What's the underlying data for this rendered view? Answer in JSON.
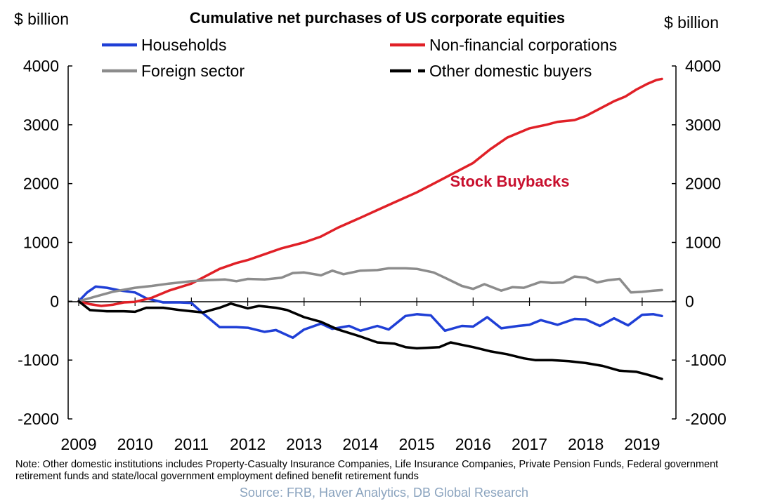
{
  "chart_data": {
    "type": "line",
    "title": "Cumulative net purchases of US corporate equities",
    "ylabel_left": "$ billion",
    "ylabel_right": "$ billion",
    "ylim": [
      -2000,
      4000
    ],
    "yticks": [
      -2000,
      -1000,
      0,
      1000,
      2000,
      3000,
      4000
    ],
    "xlim": [
      2009,
      2019.45
    ],
    "xticks": [
      "2009",
      "2010",
      "2011",
      "2012",
      "2013",
      "2014",
      "2015",
      "2016",
      "2017",
      "2018",
      "2019"
    ],
    "grid": false,
    "legend_position": "top",
    "annotation": {
      "text": "Stock Buybacks",
      "color": "#c8102e",
      "x": 2016.65,
      "y": 1950
    },
    "series": [
      {
        "name": "Households",
        "color": "#1f3fd6",
        "dash": false,
        "x": [
          2009.0,
          2009.15,
          2009.3,
          2009.5,
          2009.75,
          2010.0,
          2010.2,
          2010.5,
          2010.8,
          2011.0,
          2011.2,
          2011.5,
          2011.8,
          2012.0,
          2012.3,
          2012.5,
          2012.8,
          2013.0,
          2013.3,
          2013.5,
          2013.8,
          2014.0,
          2014.3,
          2014.5,
          2014.8,
          2015.0,
          2015.25,
          2015.5,
          2015.8,
          2016.0,
          2016.25,
          2016.5,
          2016.8,
          2017.0,
          2017.2,
          2017.5,
          2017.8,
          2018.0,
          2018.25,
          2018.5,
          2018.75,
          2019.0,
          2019.2,
          2019.35
        ],
        "values": [
          0,
          150,
          250,
          230,
          180,
          150,
          50,
          -20,
          -20,
          -30,
          -200,
          -440,
          -440,
          -450,
          -520,
          -490,
          -620,
          -480,
          -380,
          -470,
          -420,
          -500,
          -420,
          -480,
          -250,
          -220,
          -240,
          -500,
          -420,
          -430,
          -270,
          -460,
          -420,
          -400,
          -320,
          -400,
          -300,
          -310,
          -420,
          -290,
          -410,
          -230,
          -220,
          -250
        ]
      },
      {
        "name": "Non-financial corporations",
        "color": "#e02027",
        "dash": false,
        "x": [
          2009.0,
          2009.2,
          2009.4,
          2009.6,
          2009.8,
          2010.0,
          2010.3,
          2010.6,
          2011.0,
          2011.2,
          2011.5,
          2011.8,
          2012.0,
          2012.3,
          2012.6,
          2013.0,
          2013.3,
          2013.6,
          2014.0,
          2014.3,
          2014.6,
          2015.0,
          2015.3,
          2015.6,
          2016.0,
          2016.3,
          2016.6,
          2017.0,
          2017.3,
          2017.5,
          2017.8,
          2018.0,
          2018.3,
          2018.5,
          2018.7,
          2018.9,
          2019.1,
          2019.25,
          2019.35
        ],
        "values": [
          0,
          -50,
          -80,
          -60,
          -20,
          -10,
          60,
          180,
          300,
          400,
          550,
          650,
          700,
          800,
          900,
          1000,
          1100,
          1250,
          1420,
          1550,
          1680,
          1850,
          2000,
          2150,
          2350,
          2580,
          2780,
          2940,
          3000,
          3050,
          3080,
          3150,
          3300,
          3400,
          3480,
          3600,
          3700,
          3760,
          3780
        ]
      },
      {
        "name": "Foreign sector",
        "color": "#8c8c8c",
        "dash": false,
        "x": [
          2009.0,
          2009.3,
          2009.6,
          2010.0,
          2010.3,
          2010.6,
          2011.0,
          2011.3,
          2011.6,
          2011.8,
          2012.0,
          2012.3,
          2012.6,
          2012.8,
          2013.0,
          2013.3,
          2013.5,
          2013.7,
          2014.0,
          2014.3,
          2014.5,
          2014.8,
          2015.0,
          2015.3,
          2015.5,
          2015.8,
          2016.0,
          2016.2,
          2016.5,
          2016.7,
          2016.9,
          2017.2,
          2017.4,
          2017.6,
          2017.8,
          2018.0,
          2018.2,
          2018.4,
          2018.6,
          2018.8,
          2019.0,
          2019.2,
          2019.35
        ],
        "values": [
          0,
          80,
          160,
          230,
          260,
          300,
          340,
          360,
          370,
          340,
          380,
          370,
          400,
          480,
          490,
          440,
          520,
          460,
          520,
          530,
          560,
          560,
          550,
          490,
          400,
          260,
          210,
          290,
          180,
          240,
          230,
          330,
          310,
          320,
          420,
          400,
          320,
          360,
          380,
          150,
          160,
          180,
          190
        ]
      },
      {
        "name": "Other domestic buyers",
        "color": "#000000",
        "dash": true,
        "x": [
          2009.0,
          2009.2,
          2009.5,
          2009.8,
          2010.0,
          2010.2,
          2010.5,
          2010.8,
          2011.0,
          2011.2,
          2011.5,
          2011.7,
          2012.0,
          2012.2,
          2012.5,
          2012.7,
          2013.0,
          2013.3,
          2013.6,
          2014.0,
          2014.3,
          2014.6,
          2014.8,
          2015.0,
          2015.2,
          2015.4,
          2015.6,
          2015.8,
          2016.0,
          2016.3,
          2016.6,
          2016.9,
          2017.1,
          2017.4,
          2017.7,
          2018.0,
          2018.3,
          2018.6,
          2018.9,
          2019.1,
          2019.35
        ],
        "values": [
          0,
          -150,
          -170,
          -170,
          -180,
          -110,
          -110,
          -150,
          -170,
          -190,
          -110,
          -40,
          -120,
          -80,
          -110,
          -150,
          -270,
          -350,
          -480,
          -600,
          -700,
          -720,
          -780,
          -800,
          -790,
          -780,
          -700,
          -740,
          -780,
          -850,
          -900,
          -970,
          -1000,
          -1000,
          -1020,
          -1050,
          -1100,
          -1180,
          -1200,
          -1250,
          -1320
        ]
      }
    ]
  },
  "note": "Note: Other domestic institutions includes Property-Casualty Insurance Companies, Life Insurance Companies, Private Pension Funds, Federal government retirement funds and state/local government employment defined benefit retirement funds",
  "source": "Source: FRB, Haver Analytics, DB Global Research"
}
